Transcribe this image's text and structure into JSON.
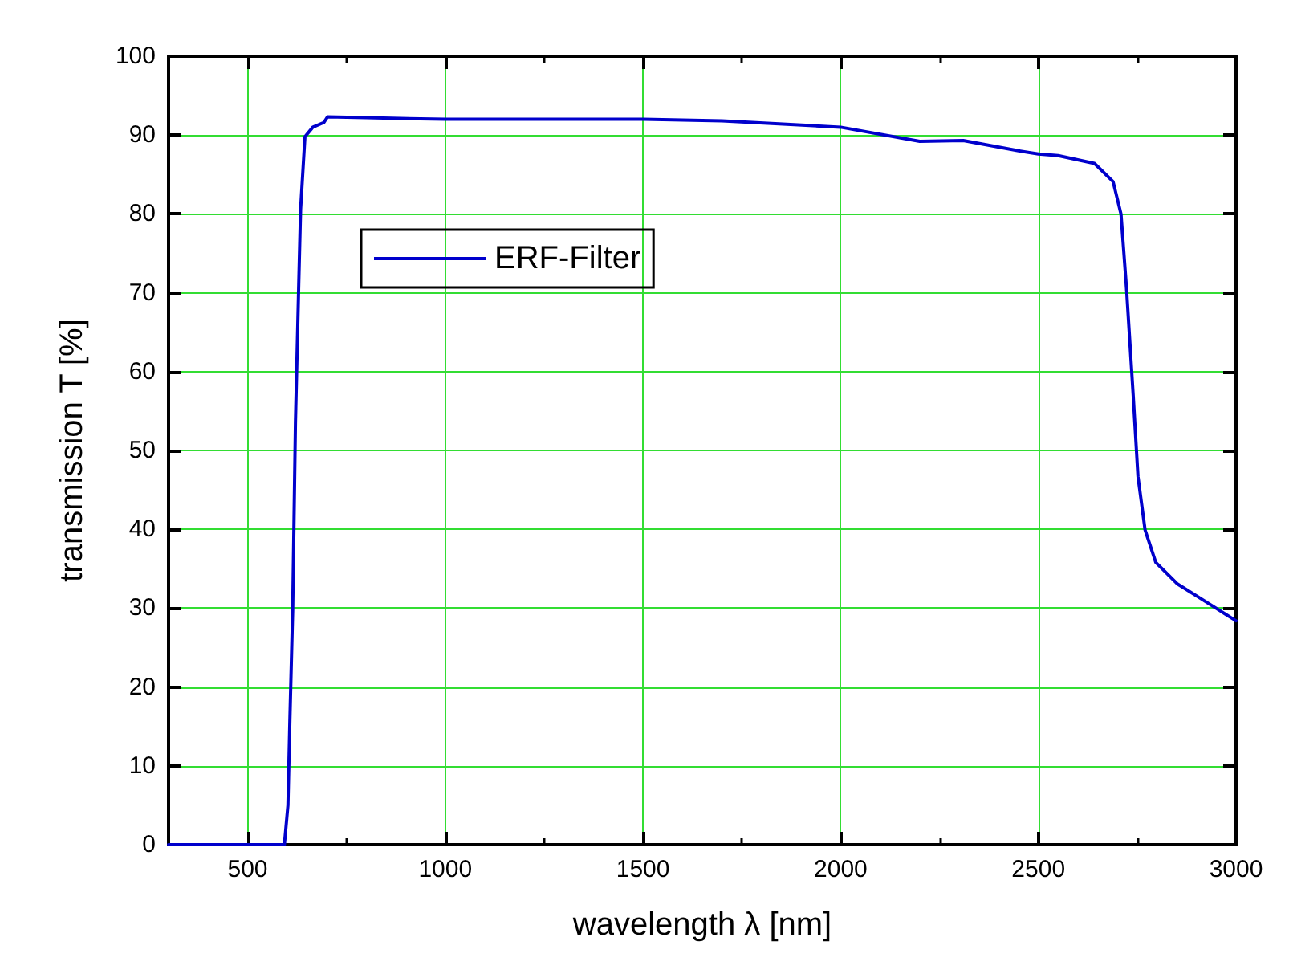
{
  "chart_data": {
    "type": "line",
    "xlabel": "wavelength λ [nm]",
    "ylabel": "transmission T [%]",
    "xlim": [
      300,
      3000
    ],
    "xticks": [
      500,
      1000,
      1500,
      2000,
      2500,
      3000
    ],
    "ylim": [
      0,
      100
    ],
    "yticks": [
      0,
      10,
      20,
      30,
      40,
      50,
      60,
      70,
      80,
      90,
      100
    ],
    "grid": true,
    "legend": "top left",
    "line_style": "solid",
    "marker": "none",
    "series": [
      {
        "name": "ERF-Filter",
        "color": "#0000cc",
        "x": [
          300,
          593,
          602,
          607,
          614,
          621,
          629,
          634,
          645,
          665,
          693,
          702,
          800,
          1000,
          1500,
          1700,
          2000,
          2200,
          2310,
          2450,
          2500,
          2550,
          2642,
          2689,
          2709,
          2723,
          2740,
          2752,
          2770,
          2797,
          2851,
          2905,
          3000
        ],
        "values": [
          0,
          0,
          5,
          16,
          29.7,
          53.6,
          70.5,
          80.6,
          89.8,
          91,
          91.6,
          92.3,
          92.2,
          92,
          92,
          91.8,
          91,
          89.2,
          89.3,
          88,
          87.6,
          87.4,
          86.4,
          84.1,
          80,
          70.5,
          56.9,
          46.7,
          39.9,
          35.8,
          33.1,
          31.4,
          28.4
        ]
      }
    ]
  }
}
